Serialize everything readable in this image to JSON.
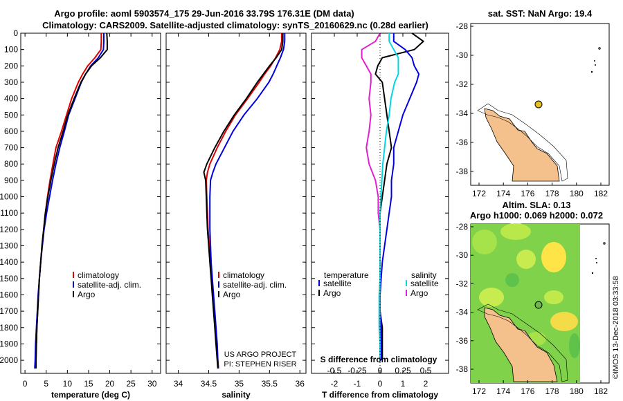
{
  "header": {
    "line1": "Argo profile: aoml 5903574_175 29-Jun-2016 33.79S 176.31E (DM data)",
    "line2": "Climatology: CARS2009. Satellite-adjusted climatology: synTS_20160629.nc (0.28d earlier)"
  },
  "map1": {
    "title": "sat. SST: NaN Argo: 19.4",
    "xticks": [
      "172",
      "174",
      "176",
      "178",
      "180",
      "182"
    ],
    "yticks": [
      "-28",
      "-30",
      "-32",
      "-34",
      "-36",
      "-38"
    ],
    "colors": {
      "land": "#f4c08c",
      "marker": "#e6c020"
    }
  },
  "map2": {
    "title1": "Altim. SLA: 0.13",
    "title2": "Argo h1000: 0.069 h2000: 0.072",
    "xticks": [
      "172",
      "174",
      "176",
      "178",
      "180",
      "182"
    ],
    "yticks": [
      "-28",
      "-30",
      "-32",
      "-34",
      "-36",
      "-38"
    ],
    "colors": {
      "field": "#7fd24a",
      "high": "#f0d040",
      "land": "#f4c08c",
      "marker": "#6ab84a"
    }
  },
  "credit": {
    "project": "US ARGO PROJECT",
    "pi": "PI: STEPHEN RISER",
    "imos": "©IMOS 13-Dec-2018 03:33:58"
  },
  "depth_ticks": [
    "0",
    "100",
    "200",
    "300",
    "400",
    "500",
    "600",
    "700",
    "800",
    "900",
    "1000",
    "1100",
    "1200",
    "1300",
    "1400",
    "1500",
    "1600",
    "1700",
    "1800",
    "1900",
    "2000"
  ],
  "chart_data": [
    {
      "type": "line",
      "panel": "temperature",
      "xlabel": "temperature (deg C)",
      "ylabel": "",
      "xlim": [
        -1,
        32
      ],
      "ylim": [
        2080,
        0
      ],
      "xticks": [
        "0",
        "5",
        "10",
        "15",
        "20",
        "25",
        "30"
      ],
      "depth": [
        0,
        50,
        100,
        150,
        200,
        250,
        300,
        400,
        500,
        600,
        700,
        800,
        900,
        1000,
        1100,
        1200,
        1300,
        1400,
        1500,
        1600,
        1700,
        1800,
        1900,
        2000,
        2050
      ],
      "series": [
        {
          "name": "climatology",
          "color": "#e00000",
          "values": [
            18.0,
            18.0,
            17.9,
            16.5,
            14.8,
            13.6,
            12.6,
            11.0,
            9.8,
            8.6,
            7.3,
            6.6,
            5.9,
            5.3,
            4.8,
            4.4,
            4.0,
            3.7,
            3.4,
            3.2,
            3.0,
            2.8,
            2.7,
            2.6,
            2.5
          ]
        },
        {
          "name": "satellite-adj. clim.",
          "color": "#0000e0",
          "values": [
            18.6,
            18.6,
            18.5,
            17.3,
            15.5,
            14.3,
            13.3,
            11.8,
            10.3,
            9.3,
            8.2,
            7.3,
            6.5,
            5.8,
            5.1,
            4.5,
            4.1,
            3.7,
            3.4,
            3.1,
            2.9,
            2.7,
            2.5,
            2.4,
            2.3
          ]
        },
        {
          "name": "Argo",
          "color": "#000000",
          "values": [
            19.3,
            19.4,
            19.4,
            17.8,
            15.7,
            14.3,
            13.2,
            11.6,
            10.1,
            9.0,
            7.8,
            6.9,
            6.1,
            5.4,
            4.8,
            4.4,
            4.0,
            3.7,
            3.4,
            3.2,
            3.0,
            2.8,
            2.7,
            2.6,
            2.6
          ]
        }
      ],
      "legend": [
        {
          "label": "climatology",
          "color": "#e00000"
        },
        {
          "label": "satellite-adj. clim.",
          "color": "#0000e0"
        },
        {
          "label": "Argo",
          "color": "#000000"
        }
      ]
    },
    {
      "type": "line",
      "panel": "salinity",
      "xlabel": "salinity",
      "ylabel": "",
      "xlim": [
        33.8,
        36.1
      ],
      "ylim": [
        2080,
        0
      ],
      "xticks": [
        "34",
        "34.5",
        "35",
        "35.5",
        "36"
      ],
      "depth": [
        0,
        50,
        100,
        150,
        200,
        250,
        300,
        400,
        500,
        600,
        700,
        800,
        850,
        900,
        1000,
        1100,
        1200,
        1300,
        1400,
        1500,
        1600,
        1700,
        1800,
        1900,
        2000,
        2050
      ],
      "series": [
        {
          "name": "climatology",
          "color": "#e00000",
          "values": [
            35.7,
            35.7,
            35.67,
            35.6,
            35.52,
            35.42,
            35.33,
            35.14,
            34.94,
            34.78,
            34.64,
            34.52,
            34.48,
            34.46,
            34.47,
            34.48,
            34.49,
            34.51,
            34.53,
            34.55,
            34.57,
            34.59,
            34.61,
            34.63,
            34.65,
            34.66
          ]
        },
        {
          "name": "satellite-adj. clim.",
          "color": "#0000e0",
          "values": [
            35.75,
            35.75,
            35.73,
            35.68,
            35.62,
            35.56,
            35.49,
            35.3,
            35.08,
            34.9,
            34.76,
            34.62,
            34.57,
            34.53,
            34.52,
            34.52,
            34.52,
            34.53,
            34.54,
            34.56,
            34.58,
            34.6,
            34.62,
            34.64,
            34.65,
            34.66
          ]
        },
        {
          "name": "Argo",
          "color": "#000000",
          "values": [
            35.72,
            35.72,
            35.7,
            35.61,
            35.5,
            35.4,
            35.3,
            35.12,
            34.92,
            34.75,
            34.6,
            34.47,
            34.42,
            34.45,
            34.46,
            34.47,
            34.48,
            34.5,
            34.52,
            34.54,
            34.56,
            34.58,
            34.6,
            34.62,
            34.64,
            34.65
          ]
        }
      ],
      "legend": [
        {
          "label": "climatology",
          "color": "#e00000"
        },
        {
          "label": "satellite-adj. clim.",
          "color": "#0000e0"
        },
        {
          "label": "Argo",
          "color": "#000000"
        }
      ]
    },
    {
      "type": "line",
      "panel": "differences",
      "xlabel": "T difference from climatology",
      "xlabel_top": "S difference from climatology",
      "xlim": [
        -3,
        3
      ],
      "ylim": [
        2080,
        0
      ],
      "xticks": [
        "-2",
        "-1",
        "0",
        "1",
        "2"
      ],
      "s_xticks": [
        "-0.5",
        "-0.25",
        "0",
        "0.25",
        "0.5"
      ],
      "depth": [
        0,
        50,
        100,
        150,
        200,
        250,
        300,
        400,
        500,
        600,
        700,
        800,
        900,
        1000,
        1100,
        1200,
        1300,
        1400,
        1500,
        1600,
        1700,
        1800,
        1900,
        2000
      ],
      "series": [
        {
          "name": "temperature Argo",
          "color": "#000000",
          "values": [
            1.4,
            1.9,
            1.5,
            0.1,
            -0.1,
            -0.2,
            0.1,
            0.2,
            0.3,
            0.4,
            0.5,
            0.3,
            0.2,
            0.1,
            0.0,
            0.0,
            0.0,
            0.0,
            0.0,
            0.0,
            0.0,
            0.1,
            0.1,
            0.1
          ]
        },
        {
          "name": "temperature satellite",
          "color": "#0000e0",
          "values": [
            0.6,
            0.6,
            1.1,
            1.4,
            1.5,
            1.7,
            1.6,
            1.3,
            1.0,
            0.8,
            0.6,
            0.6,
            0.5,
            0.5,
            0.4,
            0.3,
            0.2,
            0.1,
            0.05,
            0.0,
            0.0,
            0.05,
            0.05,
            0.05
          ]
        },
        {
          "name": "salinity Argo",
          "color": "#e020d0",
          "values": [
            0.0,
            -0.05,
            -0.2,
            -0.2,
            -0.15,
            -0.1,
            -0.1,
            -0.12,
            -0.1,
            -0.12,
            -0.15,
            -0.12,
            -0.05,
            -0.02,
            -0.02,
            0.0,
            0.0,
            0.0,
            0.0,
            0.0,
            0.0,
            0.0,
            0.0,
            0.0
          ]
        },
        {
          "name": "salinity satellite",
          "color": "#00d8e0",
          "values": [
            0.1,
            0.1,
            0.15,
            0.2,
            0.2,
            0.2,
            0.16,
            0.12,
            0.1,
            0.07,
            0.05,
            0.03,
            0.02,
            0.01,
            0.0,
            0.0,
            0.0,
            0.0,
            0.0,
            -0.01,
            -0.01,
            -0.01,
            0.0,
            0.0
          ]
        }
      ],
      "legend_temperature": {
        "title": "temperature",
        "items": [
          {
            "label": "satellite",
            "color": "#0000e0"
          },
          {
            "label": "Argo",
            "color": "#000000"
          }
        ]
      },
      "legend_salinity": {
        "title": "salinity",
        "items": [
          {
            "label": "satellite",
            "color": "#00d8e0"
          },
          {
            "label": "Argo",
            "color": "#e020d0"
          }
        ]
      }
    }
  ]
}
